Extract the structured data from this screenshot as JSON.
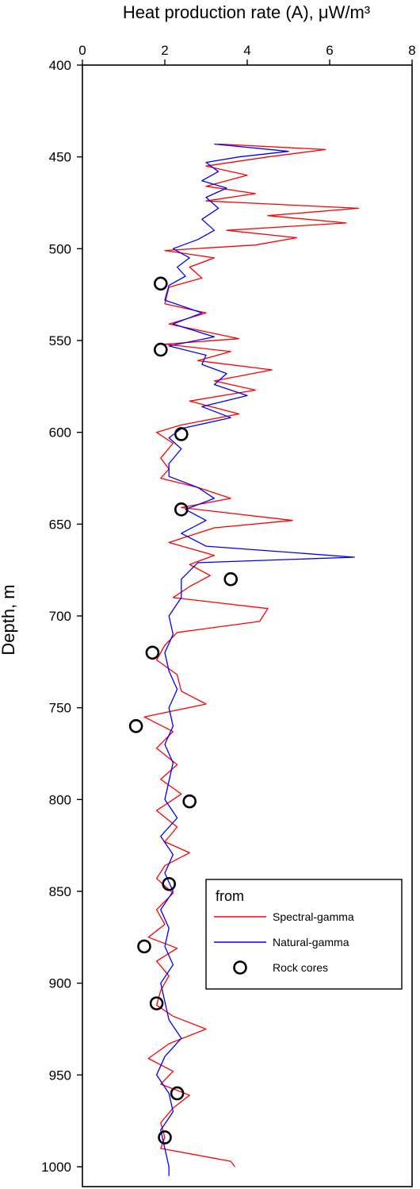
{
  "chart_data": {
    "type": "line",
    "title": "",
    "xlabel": "Heat production rate (A), μW/m³",
    "ylabel": "Depth, m",
    "xlim": [
      0,
      8
    ],
    "ylim": [
      400,
      1010
    ],
    "y_inverted": true,
    "x_axis_position": "top",
    "x_ticks": [
      0,
      2,
      4,
      6,
      8
    ],
    "y_ticks": [
      400,
      450,
      500,
      550,
      600,
      650,
      700,
      750,
      800,
      850,
      900,
      950,
      1000
    ],
    "grid": false,
    "legend": {
      "title": "from",
      "placement": "bottom-right"
    },
    "colors": {
      "spectral": "#ff0000",
      "natural": "#0000ff",
      "cores": "#000000"
    },
    "series": [
      {
        "name": "Spectral-gamma",
        "kind": "line",
        "color": "#ff0000",
        "points": [
          [
            3.3,
            443
          ],
          [
            5.9,
            446
          ],
          [
            4.5,
            450
          ],
          [
            3.0,
            455
          ],
          [
            4.0,
            460
          ],
          [
            3.0,
            466
          ],
          [
            4.2,
            470
          ],
          [
            3.0,
            474
          ],
          [
            6.7,
            478
          ],
          [
            4.5,
            482
          ],
          [
            6.4,
            486
          ],
          [
            3.5,
            490
          ],
          [
            5.2,
            494
          ],
          [
            4.2,
            498
          ],
          [
            2.0,
            501
          ],
          [
            3.2,
            505
          ],
          [
            2.6,
            510
          ],
          [
            2.9,
            516
          ],
          [
            2.1,
            521
          ],
          [
            2.0,
            530
          ],
          [
            3.0,
            535
          ],
          [
            2.1,
            541
          ],
          [
            3.8,
            549
          ],
          [
            2.0,
            552
          ],
          [
            3.6,
            556
          ],
          [
            2.8,
            561
          ],
          [
            4.6,
            566
          ],
          [
            3.2,
            572
          ],
          [
            4.2,
            577
          ],
          [
            2.6,
            583
          ],
          [
            3.8,
            590
          ],
          [
            2.4,
            596
          ],
          [
            1.8,
            600
          ],
          [
            2.2,
            606
          ],
          [
            1.9,
            614
          ],
          [
            2.1,
            620
          ],
          [
            1.9,
            625
          ],
          [
            2.8,
            630
          ],
          [
            3.6,
            636
          ],
          [
            2.4,
            641
          ],
          [
            5.1,
            648
          ],
          [
            3.2,
            652
          ],
          [
            2.1,
            660
          ],
          [
            3.2,
            667
          ],
          [
            2.6,
            672
          ],
          [
            3.1,
            678
          ],
          [
            2.6,
            684
          ],
          [
            2.2,
            690
          ],
          [
            4.5,
            696
          ],
          [
            4.3,
            703
          ],
          [
            2.3,
            709
          ],
          [
            2.0,
            716
          ],
          [
            1.8,
            724
          ],
          [
            2.3,
            732
          ],
          [
            2.4,
            741
          ],
          [
            3.0,
            748
          ],
          [
            1.5,
            755
          ],
          [
            2.2,
            763
          ],
          [
            1.8,
            772
          ],
          [
            2.3,
            781
          ],
          [
            1.9,
            789
          ],
          [
            2.4,
            797
          ],
          [
            1.8,
            806
          ],
          [
            2.3,
            815
          ],
          [
            2.0,
            823
          ],
          [
            2.6,
            829
          ],
          [
            2.0,
            836
          ],
          [
            1.8,
            843
          ],
          [
            2.2,
            851
          ],
          [
            1.8,
            860
          ],
          [
            2.0,
            868
          ],
          [
            1.6,
            875
          ],
          [
            2.3,
            881
          ],
          [
            1.8,
            888
          ],
          [
            2.1,
            896
          ],
          [
            1.9,
            904
          ],
          [
            1.8,
            912
          ],
          [
            2.2,
            918
          ],
          [
            3.0,
            925
          ],
          [
            2.1,
            933
          ],
          [
            1.6,
            941
          ],
          [
            2.2,
            948
          ],
          [
            1.9,
            955
          ],
          [
            2.6,
            961
          ],
          [
            2.2,
            968
          ],
          [
            1.9,
            976
          ],
          [
            2.0,
            984
          ],
          [
            1.9,
            990
          ],
          [
            3.6,
            997
          ],
          [
            3.7,
            1000
          ]
        ]
      },
      {
        "name": "Natural-gamma",
        "kind": "line",
        "color": "#0000ff",
        "points": [
          [
            3.2,
            443
          ],
          [
            5.0,
            447
          ],
          [
            3.8,
            450
          ],
          [
            3.0,
            453
          ],
          [
            3.3,
            458
          ],
          [
            2.9,
            463
          ],
          [
            3.5,
            467
          ],
          [
            3.0,
            472
          ],
          [
            3.3,
            478
          ],
          [
            2.9,
            484
          ],
          [
            3.2,
            490
          ],
          [
            2.8,
            495
          ],
          [
            2.2,
            500
          ],
          [
            2.6,
            505
          ],
          [
            2.3,
            510
          ],
          [
            2.5,
            515
          ],
          [
            2.1,
            520
          ],
          [
            2.0,
            528
          ],
          [
            2.9,
            535
          ],
          [
            2.2,
            541
          ],
          [
            3.2,
            548
          ],
          [
            2.1,
            553
          ],
          [
            3.0,
            558
          ],
          [
            2.9,
            563
          ],
          [
            3.5,
            568
          ],
          [
            3.2,
            574
          ],
          [
            4.0,
            580
          ],
          [
            2.9,
            586
          ],
          [
            3.6,
            592
          ],
          [
            2.4,
            598
          ],
          [
            2.1,
            603
          ],
          [
            2.4,
            609
          ],
          [
            2.1,
            617
          ],
          [
            2.1,
            624
          ],
          [
            2.8,
            630
          ],
          [
            3.2,
            636
          ],
          [
            2.5,
            642
          ],
          [
            3.0,
            648
          ],
          [
            2.4,
            655
          ],
          [
            3.0,
            662
          ],
          [
            6.6,
            668
          ],
          [
            2.8,
            671
          ],
          [
            2.4,
            680
          ],
          [
            2.4,
            690
          ],
          [
            2.1,
            700
          ],
          [
            2.2,
            710
          ],
          [
            2.0,
            720
          ],
          [
            2.1,
            730
          ],
          [
            2.3,
            740
          ],
          [
            2.1,
            750
          ],
          [
            2.2,
            760
          ],
          [
            2.0,
            770
          ],
          [
            2.2,
            780
          ],
          [
            2.1,
            790
          ],
          [
            2.0,
            800
          ],
          [
            2.3,
            810
          ],
          [
            1.9,
            820
          ],
          [
            2.2,
            830
          ],
          [
            2.0,
            840
          ],
          [
            2.2,
            850
          ],
          [
            1.9,
            860
          ],
          [
            2.1,
            870
          ],
          [
            2.0,
            880
          ],
          [
            2.2,
            890
          ],
          [
            1.9,
            900
          ],
          [
            2.0,
            910
          ],
          [
            2.1,
            920
          ],
          [
            2.4,
            930
          ],
          [
            2.0,
            940
          ],
          [
            1.8,
            950
          ],
          [
            2.1,
            960
          ],
          [
            2.2,
            970
          ],
          [
            1.9,
            980
          ],
          [
            2.0,
            990
          ],
          [
            2.1,
            1000
          ],
          [
            2.1,
            1005
          ]
        ]
      },
      {
        "name": "Rock cores",
        "kind": "scatter",
        "color": "#000000",
        "points": [
          [
            1.9,
            519
          ],
          [
            1.9,
            555
          ],
          [
            2.4,
            601
          ],
          [
            2.4,
            642
          ],
          [
            3.6,
            680
          ],
          [
            1.7,
            720
          ],
          [
            1.3,
            760
          ],
          [
            2.6,
            801
          ],
          [
            2.1,
            846
          ],
          [
            1.5,
            880
          ],
          [
            1.8,
            911
          ],
          [
            2.3,
            960
          ],
          [
            2.0,
            984
          ]
        ]
      }
    ]
  }
}
